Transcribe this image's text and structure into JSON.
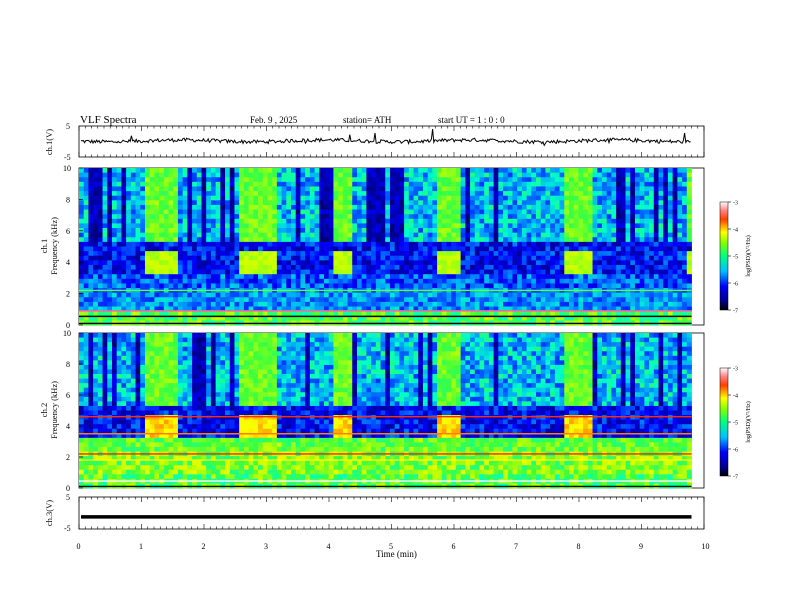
{
  "header": {
    "title": "VLF Spectra",
    "date": "Feb. 9 , 2025",
    "station": "station= ATH",
    "start": "start UT = 1 : 0 : 0"
  },
  "chart_data": [
    {
      "type": "line",
      "name_label": "ch.1(V)",
      "ylabel": "ch.1(V)",
      "ylim": [
        -5,
        5
      ],
      "yticks": [
        "5",
        "-5"
      ],
      "xlim": [
        0,
        10
      ],
      "description_level": 0.2
    },
    {
      "type": "heatmap",
      "ylabel": "ch.1\nFrequency (kHz)",
      "ylabel_line1": "ch.1",
      "ylabel_line2": "Frequency (kHz)",
      "ylim": [
        0,
        10
      ],
      "yticks": [
        "0",
        "2",
        "4",
        "6",
        "8",
        "10"
      ],
      "xlim": [
        0,
        9.8
      ],
      "bursts_min": [
        [
          1.05,
          1.55
        ],
        [
          2.6,
          3.2
        ],
        [
          4.05,
          4.4
        ],
        [
          5.7,
          6.1
        ],
        [
          7.8,
          8.2
        ],
        [
          9.75,
          9.8
        ]
      ],
      "colorbar": {
        "label": "log(PSD)(V²/Hz)",
        "ticks": [
          "-3",
          "-4",
          "-5",
          "-6",
          "-7"
        ],
        "range": [
          -7,
          -3
        ]
      }
    },
    {
      "type": "heatmap",
      "ylabel_line1": "ch.2",
      "ylabel_line2": "Frequency (kHz)",
      "ylim": [
        0,
        10
      ],
      "yticks": [
        "0",
        "2",
        "4",
        "6",
        "8",
        "10"
      ],
      "xlim": [
        0,
        9.8
      ],
      "bursts_min": [
        [
          1.05,
          1.55
        ],
        [
          2.6,
          3.2
        ],
        [
          4.05,
          4.4
        ],
        [
          5.7,
          6.1
        ],
        [
          7.8,
          8.2
        ]
      ],
      "colorbar": {
        "label": "log(PSD)(V²/Hz)",
        "ticks": [
          "-3",
          "-4",
          "-5",
          "-6",
          "-7"
        ],
        "range": [
          -7,
          -3
        ]
      }
    },
    {
      "type": "line",
      "ylabel": "ch.3(V)",
      "ylim": [
        -5,
        5
      ],
      "yticks": [
        "5",
        "-5"
      ],
      "xlim": [
        0,
        10
      ],
      "level": -1.2
    }
  ],
  "xaxis": {
    "label": "Time (min)",
    "ticks": [
      "0",
      "1",
      "2",
      "3",
      "4",
      "5",
      "6",
      "7",
      "8",
      "9",
      "10"
    ],
    "range": [
      0,
      10
    ]
  },
  "colors": {
    "colormap": [
      "#000000",
      "#00008b",
      "#0000ff",
      "#0080ff",
      "#00ffff",
      "#00ff80",
      "#80ff00",
      "#ffff00",
      "#ff8000",
      "#ff0000",
      "#ffffff"
    ]
  }
}
